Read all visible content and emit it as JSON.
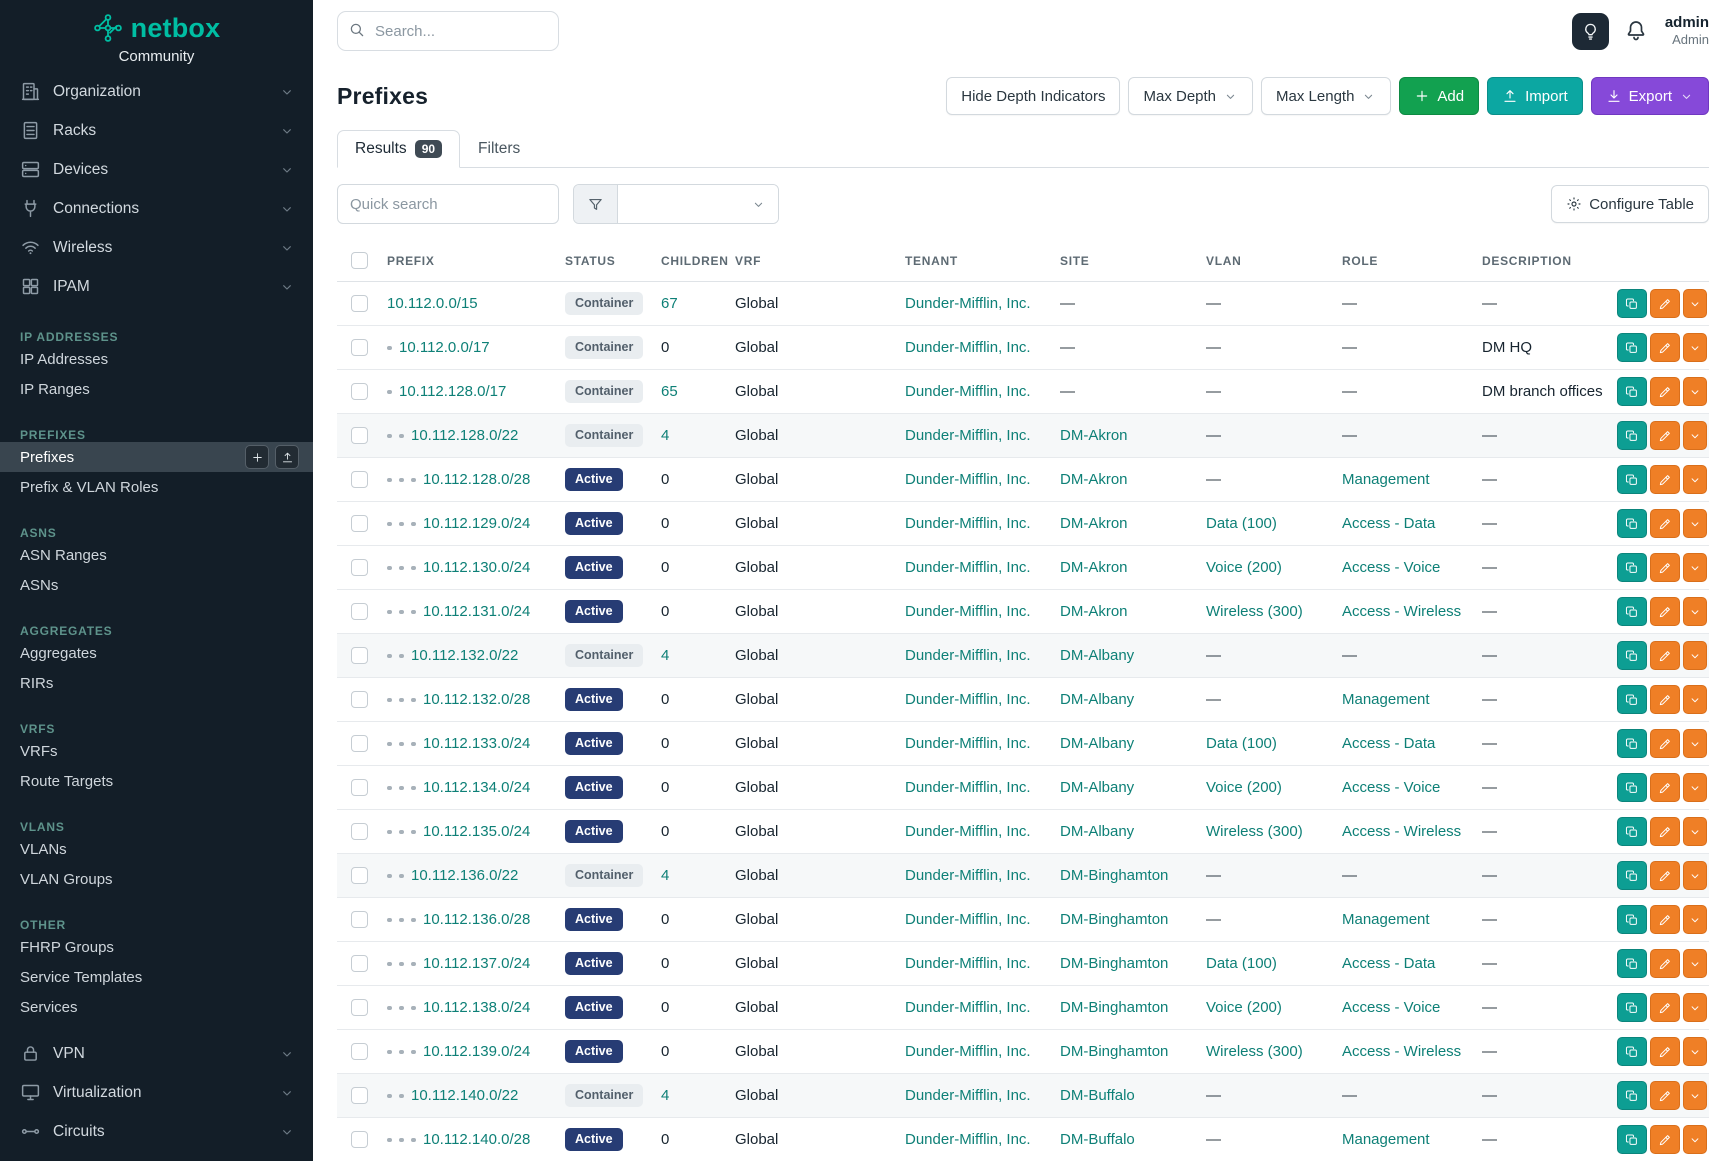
{
  "colors": {
    "brand_teal": "#00BEA3",
    "link_teal": "#0E8077",
    "status_active_bg": "#273C74",
    "status_container_bg": "#E9EDF0",
    "add_button_green": "#12A150",
    "import_button_teal": "#0CA7A2",
    "export_button_purple": "#8649D9",
    "action_copy_teal": "#0D9E93",
    "action_edit_orange": "#EF7F26",
    "sidebar_bg": "#131E28"
  },
  "sidebar": {
    "logo_text": "netbox",
    "logo_subtext": "Community",
    "active_item": "Prefixes",
    "top_items": [
      {
        "label": "Organization",
        "icon": "building-icon"
      },
      {
        "label": "Racks",
        "icon": "rack-icon"
      },
      {
        "label": "Devices",
        "icon": "devices-icon"
      },
      {
        "label": "Connections",
        "icon": "connections-icon"
      },
      {
        "label": "Wireless",
        "icon": "wireless-icon"
      },
      {
        "label": "IPAM",
        "icon": "ipam-icon"
      }
    ],
    "sections": [
      {
        "title": "IP ADDRESSES",
        "items": [
          "IP Addresses",
          "IP Ranges"
        ]
      },
      {
        "title": "PREFIXES",
        "items": [
          "Prefixes",
          "Prefix & VLAN Roles"
        ]
      },
      {
        "title": "ASNS",
        "items": [
          "ASN Ranges",
          "ASNs"
        ]
      },
      {
        "title": "AGGREGATES",
        "items": [
          "Aggregates",
          "RIRs"
        ]
      },
      {
        "title": "VRFS",
        "items": [
          "VRFs",
          "Route Targets"
        ]
      },
      {
        "title": "VLANS",
        "items": [
          "VLANs",
          "VLAN Groups"
        ]
      },
      {
        "title": "OTHER",
        "items": [
          "FHRP Groups",
          "Service Templates",
          "Services"
        ]
      }
    ],
    "bottom_items": [
      {
        "label": "VPN",
        "icon": "vpn-icon"
      },
      {
        "label": "Virtualization",
        "icon": "virtualization-icon"
      },
      {
        "label": "Circuits",
        "icon": "circuits-icon"
      }
    ]
  },
  "topbar": {
    "search_placeholder": "Search...",
    "user_name": "admin",
    "user_role": "Admin"
  },
  "page": {
    "title": "Prefixes",
    "toolbar": {
      "hide_depth": "Hide Depth Indicators",
      "max_depth": "Max Depth",
      "max_length": "Max Length",
      "add": "Add",
      "import": "Import",
      "export": "Export"
    },
    "tabs": [
      {
        "label": "Results",
        "badge": "90",
        "active": true
      },
      {
        "label": "Filters",
        "active": false
      }
    ],
    "quick_search_placeholder": "Quick search",
    "configure_table": "Configure Table"
  },
  "table": {
    "columns": [
      "PREFIX",
      "STATUS",
      "CHILDREN",
      "VRF",
      "TENANT",
      "SITE",
      "VLAN",
      "ROLE",
      "DESCRIPTION"
    ],
    "rows": [
      {
        "depth": 0,
        "prefix": "10.112.0.0/15",
        "status": "Container",
        "status_type": "container",
        "children": "67",
        "vrf": "Global",
        "tenant": "Dunder-Mifflin, Inc.",
        "site": "—",
        "vlan": "—",
        "role": "—",
        "description": "—",
        "shaded": false
      },
      {
        "depth": 1,
        "prefix": "10.112.0.0/17",
        "status": "Container",
        "status_type": "container",
        "children": "0",
        "vrf": "Global",
        "tenant": "Dunder-Mifflin, Inc.",
        "site": "—",
        "vlan": "—",
        "role": "—",
        "description": "DM HQ",
        "shaded": false
      },
      {
        "depth": 1,
        "prefix": "10.112.128.0/17",
        "status": "Container",
        "status_type": "container",
        "children": "65",
        "vrf": "Global",
        "tenant": "Dunder-Mifflin, Inc.",
        "site": "—",
        "vlan": "—",
        "role": "—",
        "description": "DM branch offices",
        "shaded": false
      },
      {
        "depth": 2,
        "prefix": "10.112.128.0/22",
        "status": "Container",
        "status_type": "container",
        "children": "4",
        "vrf": "Global",
        "tenant": "Dunder-Mifflin, Inc.",
        "site": "DM-Akron",
        "vlan": "—",
        "role": "—",
        "description": "—",
        "shaded": true
      },
      {
        "depth": 3,
        "prefix": "10.112.128.0/28",
        "status": "Active",
        "status_type": "active",
        "children": "0",
        "vrf": "Global",
        "tenant": "Dunder-Mifflin, Inc.",
        "site": "DM-Akron",
        "vlan": "—",
        "role": "Management",
        "description": "—",
        "shaded": false
      },
      {
        "depth": 3,
        "prefix": "10.112.129.0/24",
        "status": "Active",
        "status_type": "active",
        "children": "0",
        "vrf": "Global",
        "tenant": "Dunder-Mifflin, Inc.",
        "site": "DM-Akron",
        "vlan": "Data (100)",
        "role": "Access - Data",
        "description": "—",
        "shaded": false
      },
      {
        "depth": 3,
        "prefix": "10.112.130.0/24",
        "status": "Active",
        "status_type": "active",
        "children": "0",
        "vrf": "Global",
        "tenant": "Dunder-Mifflin, Inc.",
        "site": "DM-Akron",
        "vlan": "Voice (200)",
        "role": "Access - Voice",
        "description": "—",
        "shaded": false
      },
      {
        "depth": 3,
        "prefix": "10.112.131.0/24",
        "status": "Active",
        "status_type": "active",
        "children": "0",
        "vrf": "Global",
        "tenant": "Dunder-Mifflin, Inc.",
        "site": "DM-Akron",
        "vlan": "Wireless (300)",
        "role": "Access - Wireless",
        "description": "—",
        "shaded": false
      },
      {
        "depth": 2,
        "prefix": "10.112.132.0/22",
        "status": "Container",
        "status_type": "container",
        "children": "4",
        "vrf": "Global",
        "tenant": "Dunder-Mifflin, Inc.",
        "site": "DM-Albany",
        "vlan": "—",
        "role": "—",
        "description": "—",
        "shaded": true
      },
      {
        "depth": 3,
        "prefix": "10.112.132.0/28",
        "status": "Active",
        "status_type": "active",
        "children": "0",
        "vrf": "Global",
        "tenant": "Dunder-Mifflin, Inc.",
        "site": "DM-Albany",
        "vlan": "—",
        "role": "Management",
        "description": "—",
        "shaded": false
      },
      {
        "depth": 3,
        "prefix": "10.112.133.0/24",
        "status": "Active",
        "status_type": "active",
        "children": "0",
        "vrf": "Global",
        "tenant": "Dunder-Mifflin, Inc.",
        "site": "DM-Albany",
        "vlan": "Data (100)",
        "role": "Access - Data",
        "description": "—",
        "shaded": false
      },
      {
        "depth": 3,
        "prefix": "10.112.134.0/24",
        "status": "Active",
        "status_type": "active",
        "children": "0",
        "vrf": "Global",
        "tenant": "Dunder-Mifflin, Inc.",
        "site": "DM-Albany",
        "vlan": "Voice (200)",
        "role": "Access - Voice",
        "description": "—",
        "shaded": false
      },
      {
        "depth": 3,
        "prefix": "10.112.135.0/24",
        "status": "Active",
        "status_type": "active",
        "children": "0",
        "vrf": "Global",
        "tenant": "Dunder-Mifflin, Inc.",
        "site": "DM-Albany",
        "vlan": "Wireless (300)",
        "role": "Access - Wireless",
        "description": "—",
        "shaded": false
      },
      {
        "depth": 2,
        "prefix": "10.112.136.0/22",
        "status": "Container",
        "status_type": "container",
        "children": "4",
        "vrf": "Global",
        "tenant": "Dunder-Mifflin, Inc.",
        "site": "DM-Binghamton",
        "vlan": "—",
        "role": "—",
        "description": "—",
        "shaded": true
      },
      {
        "depth": 3,
        "prefix": "10.112.136.0/28",
        "status": "Active",
        "status_type": "active",
        "children": "0",
        "vrf": "Global",
        "tenant": "Dunder-Mifflin, Inc.",
        "site": "DM-Binghamton",
        "vlan": "—",
        "role": "Management",
        "description": "—",
        "shaded": false
      },
      {
        "depth": 3,
        "prefix": "10.112.137.0/24",
        "status": "Active",
        "status_type": "active",
        "children": "0",
        "vrf": "Global",
        "tenant": "Dunder-Mifflin, Inc.",
        "site": "DM-Binghamton",
        "vlan": "Data (100)",
        "role": "Access - Data",
        "description": "—",
        "shaded": false
      },
      {
        "depth": 3,
        "prefix": "10.112.138.0/24",
        "status": "Active",
        "status_type": "active",
        "children": "0",
        "vrf": "Global",
        "tenant": "Dunder-Mifflin, Inc.",
        "site": "DM-Binghamton",
        "vlan": "Voice (200)",
        "role": "Access - Voice",
        "description": "—",
        "shaded": false
      },
      {
        "depth": 3,
        "prefix": "10.112.139.0/24",
        "status": "Active",
        "status_type": "active",
        "children": "0",
        "vrf": "Global",
        "tenant": "Dunder-Mifflin, Inc.",
        "site": "DM-Binghamton",
        "vlan": "Wireless (300)",
        "role": "Access - Wireless",
        "description": "—",
        "shaded": false
      },
      {
        "depth": 2,
        "prefix": "10.112.140.0/22",
        "status": "Container",
        "status_type": "container",
        "children": "4",
        "vrf": "Global",
        "tenant": "Dunder-Mifflin, Inc.",
        "site": "DM-Buffalo",
        "vlan": "—",
        "role": "—",
        "description": "—",
        "shaded": true
      },
      {
        "depth": 3,
        "prefix": "10.112.140.0/28",
        "status": "Active",
        "status_type": "active",
        "children": "0",
        "vrf": "Global",
        "tenant": "Dunder-Mifflin, Inc.",
        "site": "DM-Buffalo",
        "vlan": "—",
        "role": "Management",
        "description": "—",
        "shaded": false
      }
    ]
  }
}
